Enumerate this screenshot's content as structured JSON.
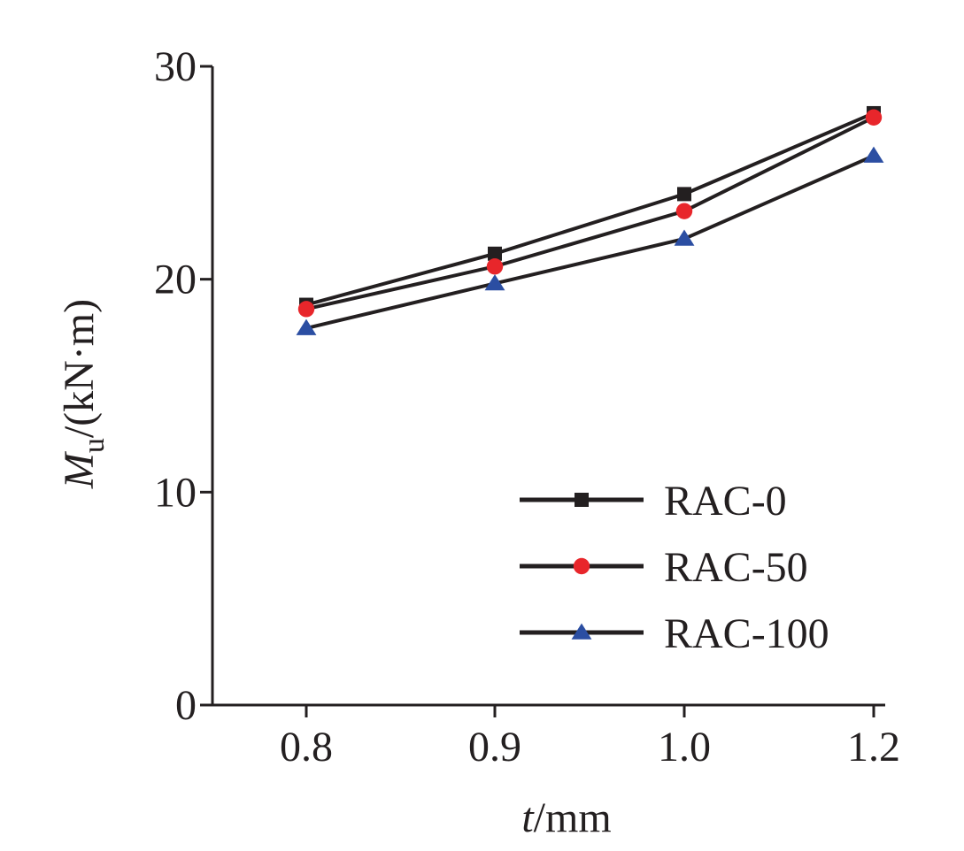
{
  "chart_data": {
    "type": "line",
    "categories": [
      "0.8",
      "0.9",
      "1.0",
      "1.2"
    ],
    "x_tick_labels": [
      "0.8",
      "0.9",
      "1.0",
      "1.2"
    ],
    "y_tick_labels": [
      "0",
      "10",
      "20",
      "30"
    ],
    "y_ticks": [
      0,
      10,
      20,
      30
    ],
    "ylim": [
      0,
      30
    ],
    "xlabel": {
      "var": "t",
      "unit": "/mm"
    },
    "ylabel": {
      "var": "M",
      "sub": "u",
      "unit": "/(kN·m)"
    },
    "grid": false,
    "legend_position": "bottom-right",
    "series": [
      {
        "name": "RAC-0",
        "marker": "square",
        "color": "#231f20",
        "values": [
          18.8,
          21.2,
          24.0,
          27.8
        ]
      },
      {
        "name": "RAC-50",
        "marker": "circle",
        "color": "#e8262b",
        "values": [
          18.6,
          20.6,
          23.2,
          27.6
        ]
      },
      {
        "name": "RAC-100",
        "marker": "triangle",
        "color": "#2b4ea2",
        "values": [
          17.7,
          19.8,
          21.9,
          25.8
        ]
      }
    ]
  }
}
